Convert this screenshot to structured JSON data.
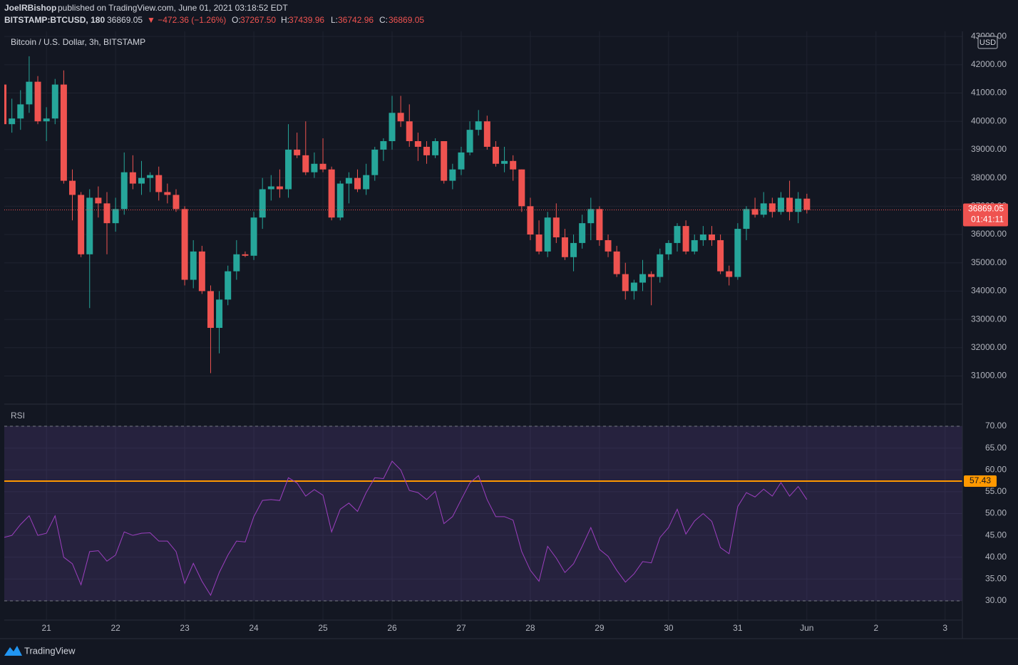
{
  "header": {
    "author": "JoelRBishop",
    "published": "published on TradingView.com, June 01, 2021 03:18:52 EDT",
    "symbol": "BITSTAMP:BTCUSD, 180",
    "change": "▼ −472.36 (−1.26%)",
    "ohlc": [
      "O:",
      "37267.50",
      "H:",
      "37439.96",
      "L:",
      "36742.96",
      "C:",
      "36869.05"
    ],
    "currency": "USD",
    "countdown": "01:41:11",
    "brand": "TradingView"
  },
  "chart_data": [
    {
      "type": "candlestick",
      "title": "Bitcoin / U.S. Dollar, 3h, BITSTAMP",
      "up_color": "#26a69a",
      "down_color": "#ef5350",
      "grid": true,
      "x": [
        20.375,
        20.5,
        20.625,
        20.75,
        20.875,
        21,
        21.125,
        21.25,
        21.375,
        21.5,
        21.625,
        21.75,
        21.875,
        22,
        22.125,
        22.25,
        22.375,
        22.5,
        22.625,
        22.75,
        22.875,
        23,
        23.125,
        23.25,
        23.375,
        23.5,
        23.625,
        23.75,
        23.875,
        24,
        24.125,
        24.25,
        24.375,
        24.5,
        24.625,
        24.75,
        24.875,
        25,
        25.125,
        25.25,
        25.375,
        25.5,
        25.625,
        25.75,
        25.875,
        26,
        26.125,
        26.25,
        26.375,
        26.5,
        26.625,
        26.75,
        26.875,
        27,
        27.125,
        27.25,
        27.375,
        27.5,
        27.625,
        27.75,
        27.875,
        28,
        28.125,
        28.25,
        28.375,
        28.5,
        28.625,
        28.75,
        28.875,
        29,
        29.125,
        29.25,
        29.375,
        29.5,
        29.625,
        29.75,
        29.875,
        30,
        30.125,
        30.25,
        30.375,
        30.5,
        30.625,
        30.75,
        30.875,
        31,
        31.125,
        31.25,
        31.375,
        31.5,
        31.625,
        31.75,
        31.875,
        32
      ],
      "open": [
        41300,
        39900,
        40100,
        40600,
        41400,
        40000,
        40100,
        41300,
        37900,
        37400,
        35300,
        37300,
        37100,
        36400,
        36900,
        38200,
        37800,
        38000,
        38100,
        37500,
        37400,
        36900,
        34400,
        35400,
        34000,
        32700,
        33700,
        34700,
        35300,
        35250,
        36600,
        37600,
        37700,
        37600,
        39000,
        38800,
        38200,
        38500,
        38300,
        36600,
        37800,
        38000,
        37600,
        38100,
        39000,
        39300,
        40300,
        40000,
        39300,
        39100,
        38800,
        39300,
        37900,
        38300,
        38900,
        39700,
        40000,
        39100,
        38500,
        38600,
        38300,
        37000,
        36000,
        35400,
        36600,
        35900,
        35200,
        35700,
        36400,
        36900,
        35800,
        35400,
        34600,
        34000,
        34300,
        34600,
        34500,
        35300,
        35700,
        36300,
        35400,
        35800,
        36000,
        35800,
        34700,
        34500,
        36200,
        36900,
        36700,
        37100,
        36800,
        37300,
        36800,
        37267.5
      ],
      "high": [
        41500,
        40800,
        41100,
        42300,
        41600,
        40500,
        41500,
        41800,
        38300,
        37500,
        37600,
        37700,
        37500,
        37300,
        38900,
        38800,
        38600,
        38200,
        38400,
        37800,
        37600,
        37000,
        35800,
        35600,
        34200,
        34000,
        34900,
        35800,
        35400,
        36800,
        38000,
        38100,
        38300,
        39900,
        39600,
        40000,
        38900,
        39400,
        38400,
        37900,
        38200,
        38300,
        38500,
        39100,
        39400,
        40900,
        40900,
        40600,
        39600,
        39300,
        39400,
        39300,
        38500,
        39100,
        40000,
        40400,
        40200,
        39300,
        39100,
        38800,
        38300,
        37300,
        36500,
        36800,
        37100,
        36200,
        36000,
        36700,
        37300,
        37000,
        36000,
        35600,
        35000,
        34400,
        35100,
        34700,
        35500,
        35800,
        36400,
        36500,
        36000,
        36300,
        36300,
        36000,
        34900,
        36400,
        37000,
        37300,
        37500,
        37300,
        37500,
        37900,
        37500,
        37439.96
      ],
      "low": [
        39900,
        39600,
        39700,
        40300,
        39900,
        39300,
        39900,
        37800,
        36500,
        35200,
        33400,
        36600,
        35300,
        36100,
        36700,
        37600,
        37400,
        37500,
        37200,
        37100,
        36800,
        34200,
        34100,
        33900,
        31100,
        31800,
        33500,
        34400,
        35200,
        35100,
        36200,
        37200,
        37300,
        37300,
        38700,
        38100,
        38000,
        38200,
        36500,
        36500,
        37100,
        37500,
        37400,
        37900,
        38600,
        39000,
        39800,
        39100,
        38600,
        38500,
        38700,
        37800,
        37600,
        38100,
        38800,
        39500,
        39000,
        38400,
        38200,
        37900,
        36800,
        35800,
        35300,
        35200,
        35700,
        35100,
        34700,
        35500,
        35800,
        35600,
        35200,
        34500,
        33700,
        33700,
        34000,
        33500,
        34300,
        35100,
        35400,
        35300,
        35300,
        35600,
        35600,
        34600,
        34200,
        34400,
        35800,
        36600,
        36600,
        36600,
        36700,
        36500,
        36400,
        36742.96
      ],
      "close": [
        39900,
        40100,
        40600,
        41400,
        40000,
        40100,
        41300,
        37900,
        37400,
        35300,
        37300,
        37100,
        36400,
        36900,
        38200,
        37800,
        38000,
        38100,
        37500,
        37400,
        36900,
        34400,
        35400,
        34000,
        32700,
        33700,
        34700,
        35300,
        35250,
        36600,
        37600,
        37700,
        37600,
        39000,
        38800,
        38200,
        38500,
        38300,
        36600,
        37800,
        38000,
        37600,
        38100,
        39000,
        39300,
        40300,
        40000,
        39300,
        39100,
        38800,
        39300,
        37900,
        38300,
        38900,
        39700,
        40000,
        39100,
        38500,
        38600,
        38300,
        37000,
        36000,
        35400,
        36600,
        35900,
        35200,
        35700,
        36400,
        36900,
        35800,
        35400,
        34600,
        34000,
        34300,
        34600,
        34500,
        35300,
        35700,
        36300,
        35400,
        35800,
        36000,
        35800,
        34700,
        34500,
        36200,
        36900,
        36700,
        37100,
        36800,
        37300,
        36800,
        37267.5,
        36869.05
      ],
      "xlim": [
        20.39,
        34.25
      ],
      "ylim": [
        30030,
        43180
      ],
      "yticks": [
        {
          "value": 31000,
          "label": "31000.00"
        },
        {
          "value": 32000,
          "label": "32000.00"
        },
        {
          "value": 33000,
          "label": "33000.00"
        },
        {
          "value": 34000,
          "label": "34000.00"
        },
        {
          "value": 35000,
          "label": "35000.00"
        },
        {
          "value": 36000,
          "label": "36000.00"
        },
        {
          "value": 37000,
          "label": "37000.00"
        },
        {
          "value": 38000,
          "label": "38000.00"
        },
        {
          "value": 39000,
          "label": "39000.00"
        },
        {
          "value": 40000,
          "label": "40000.00"
        },
        {
          "value": 41000,
          "label": "41000.00"
        },
        {
          "value": 42000,
          "label": "42000.00"
        },
        {
          "value": 43000,
          "label": "43000.00"
        }
      ]
    },
    {
      "type": "line",
      "title": "RSI",
      "color": "#9c3fbf",
      "grid": true,
      "x": [
        20.375,
        20.5,
        20.625,
        20.75,
        20.875,
        21,
        21.125,
        21.25,
        21.375,
        21.5,
        21.625,
        21.75,
        21.875,
        22,
        22.125,
        22.25,
        22.375,
        22.5,
        22.625,
        22.75,
        22.875,
        23,
        23.125,
        23.25,
        23.375,
        23.5,
        23.625,
        23.75,
        23.875,
        24,
        24.125,
        24.25,
        24.375,
        24.5,
        24.625,
        24.75,
        24.875,
        25,
        25.125,
        25.25,
        25.375,
        25.5,
        25.625,
        25.75,
        25.875,
        26,
        26.125,
        26.25,
        26.375,
        26.5,
        26.625,
        26.75,
        26.875,
        27,
        27.125,
        27.25,
        27.375,
        27.5,
        27.625,
        27.75,
        27.875,
        28,
        28.125,
        28.25,
        28.375,
        28.5,
        28.625,
        28.75,
        28.875,
        29,
        29.125,
        29.25,
        29.375,
        29.5,
        29.625,
        29.75,
        29.875,
        30,
        30.125,
        30.25,
        30.375,
        30.5,
        30.625,
        30.75,
        30.875,
        31,
        31.125,
        31.25,
        31.375,
        31.5,
        31.625,
        31.75,
        31.875,
        32
      ],
      "values": [
        44.5,
        45,
        47.5,
        49.5,
        45,
        45.5,
        49.5,
        40,
        38.5,
        33.7,
        41.3,
        41.5,
        39.1,
        40.5,
        45.8,
        45,
        45.5,
        45.6,
        43.7,
        43.7,
        41.3,
        34,
        38.6,
        34.5,
        31.3,
        36.5,
        40.5,
        43.7,
        43.5,
        49.3,
        53,
        53.2,
        53,
        58.2,
        57,
        54,
        55.5,
        54.2,
        45.8,
        51,
        52.4,
        50.5,
        54.8,
        58.2,
        58,
        62,
        60,
        55.3,
        54.8,
        53.2,
        55.1,
        47.7,
        49.3,
        53.2,
        57,
        58.7,
        53.2,
        49.3,
        49.3,
        48.5,
        41.3,
        37,
        34.5,
        42.5,
        39.8,
        36.5,
        38.5,
        42.5,
        46.8,
        41.8,
        40.2,
        37,
        34.3,
        36.2,
        39,
        38.7,
        44.5,
        46.8,
        51,
        45.3,
        48.3,
        50,
        48.2,
        42.2,
        40.8,
        51.6,
        54.8,
        53.8,
        55.6,
        54,
        57.1,
        54,
        56.2,
        53.2
      ],
      "band": [
        30,
        70
      ],
      "band_color": "#7e57c2",
      "hline": 57.43,
      "hline_color": "#ff9800",
      "xlim": [
        20.39,
        34.25
      ],
      "ylim": [
        25.6,
        74.9
      ],
      "xticks": [
        21,
        22,
        23,
        24,
        25,
        26,
        27,
        28,
        29,
        30,
        31,
        {
          "value": 32,
          "label": "Jun"
        },
        {
          "value": 33,
          "label": "2"
        },
        {
          "value": 34,
          "label": "3"
        }
      ],
      "yticks": [
        {
          "value": 30,
          "label": "30.00"
        },
        {
          "value": 35,
          "label": "35.00"
        },
        {
          "value": 40,
          "label": "40.00"
        },
        {
          "value": 45,
          "label": "45.00"
        },
        {
          "value": 50,
          "label": "50.00"
        },
        {
          "value": 55,
          "label": "55.00"
        },
        {
          "value": 60,
          "label": "60.00"
        },
        {
          "value": 65,
          "label": "65.00"
        },
        {
          "value": 70,
          "label": "70.00"
        }
      ]
    }
  ]
}
